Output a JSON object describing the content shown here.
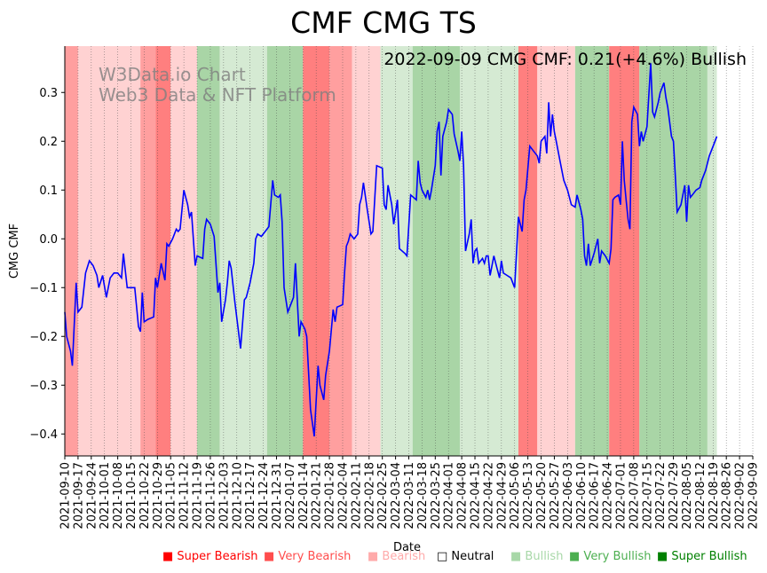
{
  "chart_data": {
    "type": "line",
    "title": "CMF CMG TS",
    "annotation": "2022-09-09 CMG CMF: 0.21(+4.6%) Bullish",
    "watermark": [
      "W3Data.io Chart",
      "Web3 Data & NFT Platform"
    ],
    "xlabel": "Date",
    "ylabel": "CMG CMF",
    "ylim": [
      -0.445,
      0.395
    ],
    "yticks": [
      -0.4,
      -0.3,
      -0.2,
      -0.1,
      0.0,
      0.1,
      0.2,
      0.3
    ],
    "ytick_labels": [
      "−0.4",
      "−0.3",
      "−0.2",
      "−0.1",
      "0.0",
      "0.1",
      "0.2",
      "0.3"
    ],
    "x_day_range": [
      0,
      364
    ],
    "xtick_labels": [
      "2021-09-10",
      "2021-09-17",
      "2021-09-24",
      "2021-10-01",
      "2021-10-08",
      "2021-10-15",
      "2021-10-22",
      "2021-10-29",
      "2021-11-05",
      "2021-11-12",
      "2021-11-19",
      "2021-11-26",
      "2021-12-03",
      "2021-12-10",
      "2021-12-17",
      "2021-12-24",
      "2021-12-31",
      "2022-01-07",
      "2022-01-14",
      "2022-01-21",
      "2022-01-28",
      "2022-02-04",
      "2022-02-11",
      "2022-02-18",
      "2022-02-25",
      "2022-03-04",
      "2022-03-11",
      "2022-03-18",
      "2022-03-25",
      "2022-04-01",
      "2022-04-08",
      "2022-04-15",
      "2022-04-22",
      "2022-04-29",
      "2022-05-06",
      "2022-05-13",
      "2022-05-20",
      "2022-05-27",
      "2022-06-03",
      "2022-06-10",
      "2022-06-17",
      "2022-06-24",
      "2022-07-01",
      "2022-07-08",
      "2022-07-15",
      "2022-07-22",
      "2022-07-29",
      "2022-08-05",
      "2022-08-12",
      "2022-08-19",
      "2022-08-26",
      "2022-09-02",
      "2022-09-09"
    ],
    "series": [
      {
        "name": "CMG CMF",
        "color": "#0000ff",
        "points": [
          [
            0,
            -0.15
          ],
          [
            1,
            -0.2
          ],
          [
            3,
            -0.23
          ],
          [
            4,
            -0.26
          ],
          [
            6,
            -0.09
          ],
          [
            7,
            -0.15
          ],
          [
            9,
            -0.14
          ],
          [
            11,
            -0.07
          ],
          [
            13,
            -0.045
          ],
          [
            15,
            -0.055
          ],
          [
            17,
            -0.075
          ],
          [
            18,
            -0.1
          ],
          [
            20,
            -0.075
          ],
          [
            22,
            -0.12
          ],
          [
            24,
            -0.08
          ],
          [
            26,
            -0.07
          ],
          [
            28,
            -0.07
          ],
          [
            30,
            -0.08
          ],
          [
            31,
            -0.03
          ],
          [
            33,
            -0.1
          ],
          [
            34,
            -0.1
          ],
          [
            37,
            -0.1
          ],
          [
            39,
            -0.18
          ],
          [
            40,
            -0.19
          ],
          [
            41,
            -0.11
          ],
          [
            42,
            -0.17
          ],
          [
            44,
            -0.165
          ],
          [
            47,
            -0.16
          ],
          [
            48,
            -0.08
          ],
          [
            49,
            -0.1
          ],
          [
            51,
            -0.05
          ],
          [
            53,
            -0.085
          ],
          [
            54,
            -0.01
          ],
          [
            55,
            -0.015
          ],
          [
            57,
            0.0
          ],
          [
            59,
            0.02
          ],
          [
            60,
            0.015
          ],
          [
            61,
            0.02
          ],
          [
            63,
            0.1
          ],
          [
            65,
            0.07
          ],
          [
            66,
            0.045
          ],
          [
            67,
            0.055
          ],
          [
            69,
            -0.055
          ],
          [
            70,
            -0.035
          ],
          [
            73,
            -0.04
          ],
          [
            74,
            0.02
          ],
          [
            75,
            0.04
          ],
          [
            77,
            0.03
          ],
          [
            79,
            0.005
          ],
          [
            81,
            -0.11
          ],
          [
            82,
            -0.09
          ],
          [
            83,
            -0.17
          ],
          [
            85,
            -0.125
          ],
          [
            86,
            -0.09
          ],
          [
            87,
            -0.045
          ],
          [
            88,
            -0.06
          ],
          [
            90,
            -0.13
          ],
          [
            93,
            -0.225
          ],
          [
            95,
            -0.125
          ],
          [
            96,
            -0.12
          ],
          [
            98,
            -0.09
          ],
          [
            100,
            -0.05
          ],
          [
            101,
            0.0
          ],
          [
            102,
            0.01
          ],
          [
            104,
            0.005
          ],
          [
            106,
            0.015
          ],
          [
            108,
            0.025
          ],
          [
            110,
            0.12
          ],
          [
            111,
            0.09
          ],
          [
            113,
            0.085
          ],
          [
            114,
            0.09
          ],
          [
            115,
            0.035
          ],
          [
            116,
            -0.1
          ],
          [
            118,
            -0.15
          ],
          [
            120,
            -0.13
          ],
          [
            121,
            -0.12
          ],
          [
            122,
            -0.05
          ],
          [
            124,
            -0.2
          ],
          [
            125,
            -0.17
          ],
          [
            127,
            -0.185
          ],
          [
            128,
            -0.2
          ],
          [
            130,
            -0.35
          ],
          [
            132,
            -0.405
          ],
          [
            133,
            -0.33
          ],
          [
            134,
            -0.26
          ],
          [
            135,
            -0.3
          ],
          [
            137,
            -0.33
          ],
          [
            138,
            -0.28
          ],
          [
            140,
            -0.23
          ],
          [
            142,
            -0.145
          ],
          [
            143,
            -0.17
          ],
          [
            144,
            -0.14
          ],
          [
            147,
            -0.135
          ],
          [
            148,
            -0.07
          ],
          [
            149,
            -0.015
          ],
          [
            150,
            -0.005
          ],
          [
            151,
            0.01
          ],
          [
            153,
            0.0
          ],
          [
            155,
            0.01
          ],
          [
            156,
            0.07
          ],
          [
            157,
            0.085
          ],
          [
            158,
            0.115
          ],
          [
            160,
            0.06
          ],
          [
            162,
            0.01
          ],
          [
            163,
            0.015
          ],
          [
            165,
            0.15
          ],
          [
            168,
            0.145
          ],
          [
            169,
            0.07
          ],
          [
            170,
            0.06
          ],
          [
            171,
            0.11
          ],
          [
            173,
            0.07
          ],
          [
            174,
            0.03
          ],
          [
            176,
            0.08
          ],
          [
            177,
            -0.02
          ],
          [
            180,
            -0.03
          ],
          [
            181,
            -0.035
          ],
          [
            183,
            0.09
          ],
          [
            186,
            0.08
          ],
          [
            187,
            0.16
          ],
          [
            188,
            0.115
          ],
          [
            189,
            0.1
          ],
          [
            191,
            0.085
          ],
          [
            192,
            0.1
          ],
          [
            193,
            0.08
          ],
          [
            194,
            0.1
          ],
          [
            196,
            0.15
          ],
          [
            197,
            0.22
          ],
          [
            198,
            0.24
          ],
          [
            199,
            0.13
          ],
          [
            200,
            0.21
          ],
          [
            202,
            0.24
          ],
          [
            203,
            0.265
          ],
          [
            205,
            0.255
          ],
          [
            206,
            0.215
          ],
          [
            208,
            0.18
          ],
          [
            209,
            0.16
          ],
          [
            210,
            0.22
          ],
          [
            211,
            0.15
          ],
          [
            212,
            -0.025
          ],
          [
            214,
            0.01
          ],
          [
            215,
            0.04
          ],
          [
            216,
            -0.05
          ],
          [
            217,
            -0.025
          ],
          [
            218,
            -0.02
          ],
          [
            219,
            -0.05
          ],
          [
            221,
            -0.04
          ],
          [
            222,
            -0.05
          ],
          [
            223,
            -0.035
          ],
          [
            224,
            -0.035
          ],
          [
            225,
            -0.075
          ],
          [
            227,
            -0.035
          ],
          [
            228,
            -0.05
          ],
          [
            230,
            -0.08
          ],
          [
            231,
            -0.045
          ],
          [
            232,
            -0.07
          ],
          [
            234,
            -0.075
          ],
          [
            236,
            -0.08
          ],
          [
            238,
            -0.1
          ],
          [
            240,
            0.045
          ],
          [
            241,
            0.03
          ],
          [
            242,
            0.015
          ],
          [
            243,
            0.08
          ],
          [
            244,
            0.1
          ],
          [
            246,
            0.19
          ],
          [
            248,
            0.18
          ],
          [
            250,
            0.17
          ],
          [
            251,
            0.155
          ],
          [
            252,
            0.2
          ],
          [
            254,
            0.21
          ],
          [
            255,
            0.175
          ],
          [
            256,
            0.28
          ],
          [
            257,
            0.21
          ],
          [
            258,
            0.255
          ],
          [
            259,
            0.22
          ],
          [
            260,
            0.2
          ],
          [
            262,
            0.16
          ],
          [
            264,
            0.12
          ],
          [
            266,
            0.1
          ],
          [
            268,
            0.07
          ],
          [
            270,
            0.065
          ],
          [
            271,
            0.09
          ],
          [
            273,
            0.06
          ],
          [
            274,
            0.04
          ],
          [
            275,
            -0.035
          ],
          [
            276,
            -0.055
          ],
          [
            277,
            -0.01
          ],
          [
            278,
            -0.055
          ],
          [
            280,
            -0.03
          ],
          [
            282,
            0.0
          ],
          [
            283,
            -0.05
          ],
          [
            284,
            -0.025
          ],
          [
            286,
            -0.035
          ],
          [
            288,
            -0.05
          ],
          [
            289,
            -0.02
          ],
          [
            290,
            0.08
          ],
          [
            291,
            0.085
          ],
          [
            293,
            0.09
          ],
          [
            294,
            0.07
          ],
          [
            295,
            0.2
          ],
          [
            296,
            0.12
          ],
          [
            297,
            0.08
          ],
          [
            298,
            0.04
          ],
          [
            299,
            0.02
          ],
          [
            300,
            0.24
          ],
          [
            301,
            0.27
          ],
          [
            303,
            0.255
          ],
          [
            304,
            0.19
          ],
          [
            305,
            0.22
          ],
          [
            306,
            0.2
          ],
          [
            308,
            0.23
          ],
          [
            310,
            0.36
          ],
          [
            311,
            0.26
          ],
          [
            312,
            0.25
          ],
          [
            313,
            0.265
          ],
          [
            314,
            0.28
          ],
          [
            315,
            0.3
          ],
          [
            316,
            0.31
          ],
          [
            317,
            0.32
          ],
          [
            318,
            0.29
          ],
          [
            319,
            0.27
          ],
          [
            320,
            0.24
          ],
          [
            321,
            0.21
          ],
          [
            322,
            0.2
          ],
          [
            323,
            0.13
          ],
          [
            324,
            0.055
          ],
          [
            326,
            0.07
          ],
          [
            327,
            0.09
          ],
          [
            328,
            0.11
          ],
          [
            329,
            0.035
          ],
          [
            330,
            0.11
          ],
          [
            331,
            0.085
          ],
          [
            332,
            0.09
          ],
          [
            334,
            0.1
          ],
          [
            336,
            0.105
          ],
          [
            337,
            0.12
          ],
          [
            339,
            0.14
          ],
          [
            341,
            0.17
          ],
          [
            343,
            0.19
          ],
          [
            345,
            0.21
          ]
        ]
      }
    ],
    "sentiment_bands": [
      {
        "from": 0,
        "to": 7,
        "level": "Very Bearish"
      },
      {
        "from": 7,
        "to": 40,
        "level": "Bearish"
      },
      {
        "from": 40,
        "to": 48,
        "level": "Very Bearish"
      },
      {
        "from": 48,
        "to": 56,
        "level": "Super Bearish"
      },
      {
        "from": 56,
        "to": 70,
        "level": "Bearish"
      },
      {
        "from": 70,
        "to": 82,
        "level": "Very Bullish"
      },
      {
        "from": 82,
        "to": 107,
        "level": "Bullish"
      },
      {
        "from": 107,
        "to": 126,
        "level": "Very Bullish"
      },
      {
        "from": 126,
        "to": 140,
        "level": "Super Bearish"
      },
      {
        "from": 140,
        "to": 152,
        "level": "Very Bearish"
      },
      {
        "from": 152,
        "to": 167,
        "level": "Bearish"
      },
      {
        "from": 167,
        "to": 184,
        "level": "Bullish"
      },
      {
        "from": 184,
        "to": 209,
        "level": "Very Bullish"
      },
      {
        "from": 209,
        "to": 240,
        "level": "Bullish"
      },
      {
        "from": 240,
        "to": 250,
        "level": "Super Bearish"
      },
      {
        "from": 250,
        "to": 270,
        "level": "Bearish"
      },
      {
        "from": 270,
        "to": 288,
        "level": "Very Bullish"
      },
      {
        "from": 288,
        "to": 304,
        "level": "Super Bearish"
      },
      {
        "from": 304,
        "to": 340,
        "level": "Very Bullish"
      },
      {
        "from": 340,
        "to": 345,
        "level": "Bullish"
      }
    ],
    "legend": [
      {
        "label": "Super Bearish",
        "color": "#ff0000"
      },
      {
        "label": "Very Bearish",
        "color": "#ff4d4d"
      },
      {
        "label": "Bearish",
        "color": "#ffaaaa"
      },
      {
        "label": "Neutral",
        "color": "#000000"
      },
      {
        "label": "Bullish",
        "color": "#a8d8a8"
      },
      {
        "label": "Very Bullish",
        "color": "#4caf50"
      },
      {
        "label": "Super Bullish",
        "color": "#008000"
      }
    ],
    "band_colors": {
      "Super Bearish": "#ff7f7f",
      "Very Bearish": "#ff9f9f",
      "Bearish": "#ffd2d2",
      "Bullish": "#d5ead3",
      "Very Bullish": "#a9d5a6",
      "Super Bullish": "#7fbf7b"
    },
    "legend_symbols": {
      "filled": "■",
      "empty": "□"
    }
  }
}
